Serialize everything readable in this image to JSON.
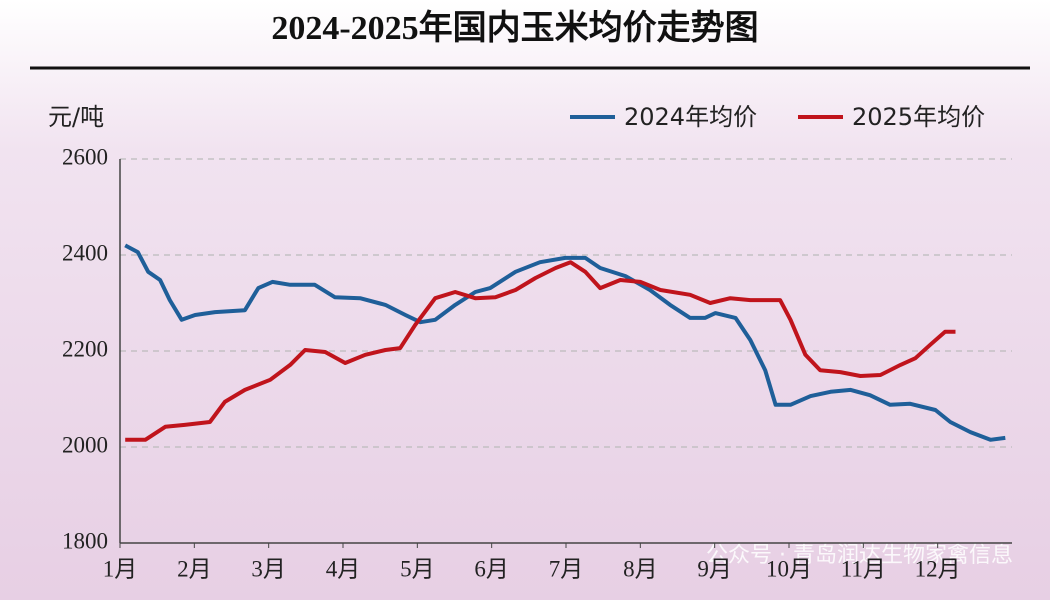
{
  "chart_data": {
    "type": "line",
    "title": "2024-2025年国内玉米均价走势图",
    "y_label": "元/吨",
    "watermark": "公众号 · 青岛润达生物家禽信息",
    "xlim": [
      1,
      13
    ],
    "xticks": [
      {
        "value": 1,
        "label": "1月"
      },
      {
        "value": 2,
        "label": "2月"
      },
      {
        "value": 3,
        "label": "3月"
      },
      {
        "value": 4,
        "label": "4月"
      },
      {
        "value": 5,
        "label": "5月"
      },
      {
        "value": 6,
        "label": "6月"
      },
      {
        "value": 7,
        "label": "7月"
      },
      {
        "value": 8,
        "label": "8月"
      },
      {
        "value": 9,
        "label": "9月"
      },
      {
        "value": 10,
        "label": "10月"
      },
      {
        "value": 11,
        "label": "11月"
      },
      {
        "value": 12,
        "label": "12月"
      }
    ],
    "ylim": [
      1800,
      2600
    ],
    "yticks": [
      1800,
      2000,
      2200,
      2400,
      2600
    ],
    "grid": true,
    "legend": "top-right",
    "series": [
      {
        "name": "2024年均价",
        "color": "#1f5f99",
        "x": [
          1.07,
          1.24,
          1.38,
          1.54,
          1.67,
          1.83,
          2.01,
          2.28,
          2.68,
          2.86,
          3.05,
          3.29,
          3.62,
          3.89,
          4.23,
          4.57,
          4.84,
          5.04,
          5.24,
          5.51,
          5.78,
          5.98,
          6.32,
          6.65,
          6.99,
          7.26,
          7.46,
          7.8,
          8.13,
          8.4,
          8.67,
          8.87,
          9.01,
          9.28,
          9.48,
          9.68,
          9.82,
          10.02,
          10.29,
          10.56,
          10.83,
          11.09,
          11.36,
          11.63,
          11.97,
          12.17,
          12.44,
          12.71,
          12.91
        ],
        "values": [
          2420,
          2406,
          2365,
          2348,
          2306,
          2265,
          2275,
          2281,
          2285,
          2331,
          2344,
          2338,
          2338,
          2312,
          2310,
          2296,
          2275,
          2260,
          2265,
          2296,
          2323,
          2331,
          2365,
          2385,
          2394,
          2394,
          2373,
          2356,
          2327,
          2296,
          2269,
          2269,
          2279,
          2269,
          2223,
          2160,
          2088,
          2088,
          2106,
          2115,
          2119,
          2108,
          2088,
          2090,
          2077,
          2052,
          2031,
          2015,
          2019
        ]
      },
      {
        "name": "2025年均价",
        "color": "#c0141c",
        "x": [
          1.07,
          1.34,
          1.61,
          1.87,
          2.21,
          2.41,
          2.68,
          3.02,
          3.29,
          3.49,
          3.76,
          4.03,
          4.3,
          4.57,
          4.77,
          4.97,
          5.24,
          5.51,
          5.78,
          6.05,
          6.32,
          6.59,
          6.86,
          7.06,
          7.26,
          7.46,
          7.73,
          8.0,
          8.27,
          8.67,
          8.94,
          9.21,
          9.48,
          9.88,
          10.02,
          10.22,
          10.42,
          10.69,
          10.96,
          11.23,
          11.5,
          11.7,
          11.9,
          12.1,
          12.24
        ],
        "values": [
          2015,
          2015,
          2042,
          2046,
          2052,
          2094,
          2119,
          2140,
          2171,
          2202,
          2198,
          2175,
          2192,
          2202,
          2206,
          2254,
          2310,
          2323,
          2310,
          2312,
          2327,
          2352,
          2373,
          2385,
          2365,
          2331,
          2348,
          2344,
          2327,
          2317,
          2300,
          2310,
          2306,
          2306,
          2265,
          2192,
          2160,
          2156,
          2148,
          2150,
          2171,
          2185,
          2213,
          2240,
          2240
        ]
      }
    ]
  }
}
